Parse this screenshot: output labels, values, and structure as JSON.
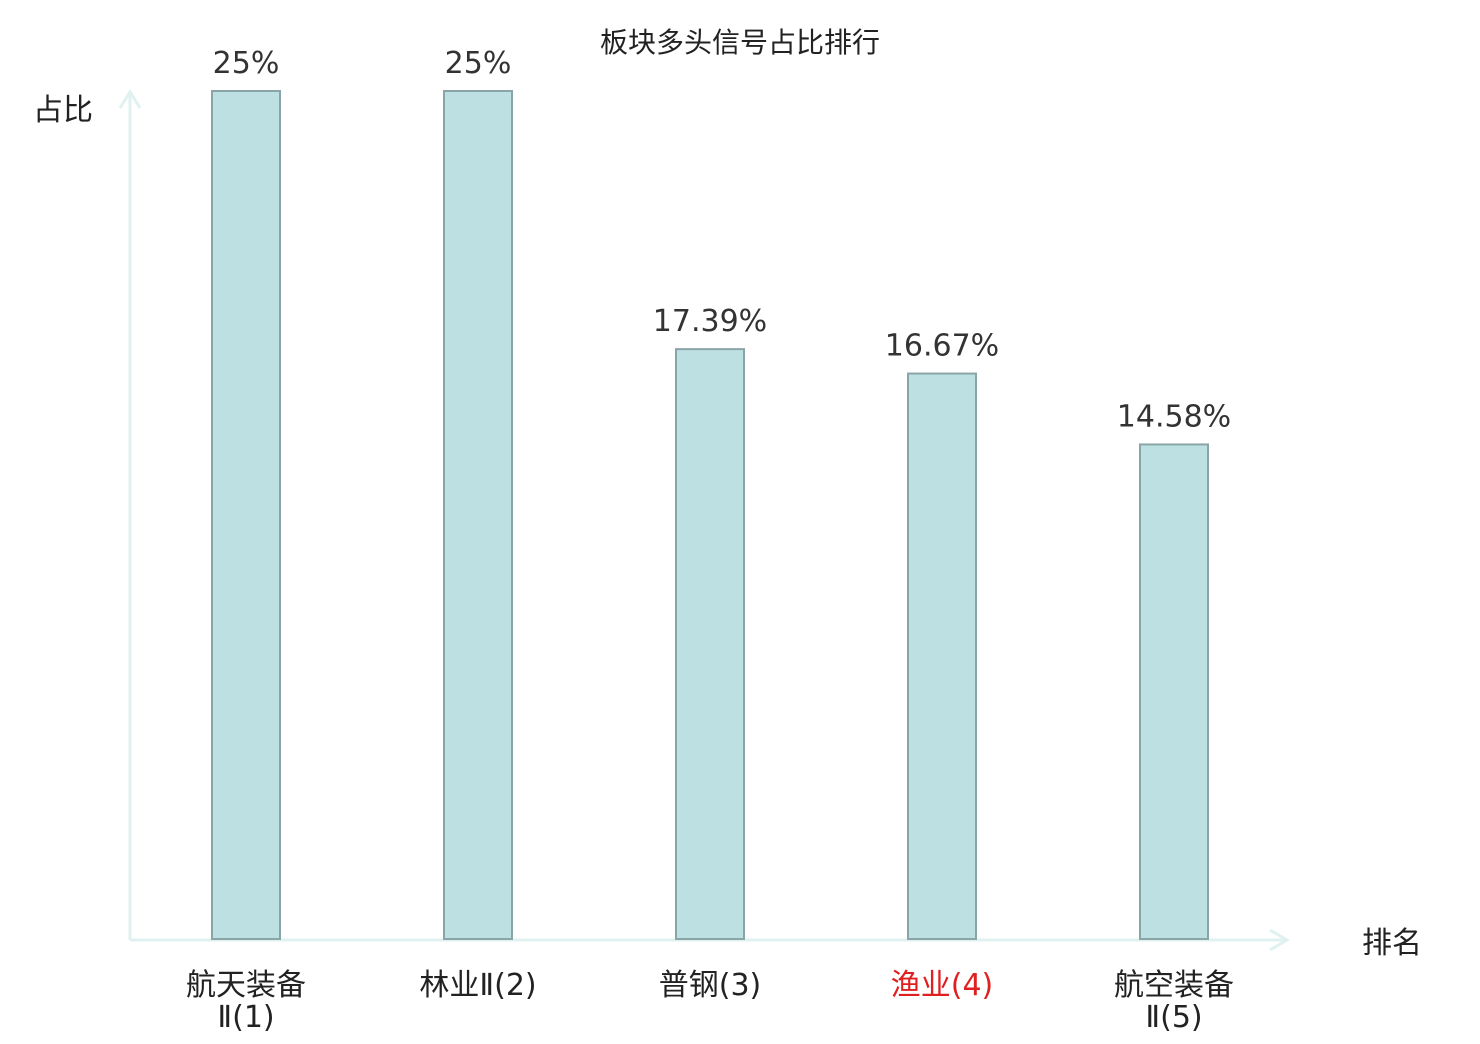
{
  "chart_data": {
    "type": "bar",
    "title": "板块多头信号占比排行",
    "ylabel": "占比",
    "xlabel": "排名",
    "categories": [
      [
        "航天装备",
        "Ⅱ(1)"
      ],
      [
        "林业Ⅱ(2)"
      ],
      [
        "普钢(3)"
      ],
      [
        "渔业(4)"
      ],
      [
        "航空装备",
        "Ⅱ(5)"
      ]
    ],
    "values": [
      25,
      25,
      17.39,
      16.67,
      14.58
    ],
    "value_labels": [
      "25%",
      "25%",
      "17.39%",
      "16.67%",
      "14.58%"
    ],
    "highlight_index": 3,
    "ylim": [
      0,
      25
    ],
    "grid": false,
    "legend": "none"
  },
  "colors": {
    "bar_fill": "#bde0e2",
    "bar_stroke": "#8aa5a8",
    "axis": "#e0f2ef",
    "text": "#333333",
    "label": "#222222",
    "highlight": "#e02020"
  }
}
